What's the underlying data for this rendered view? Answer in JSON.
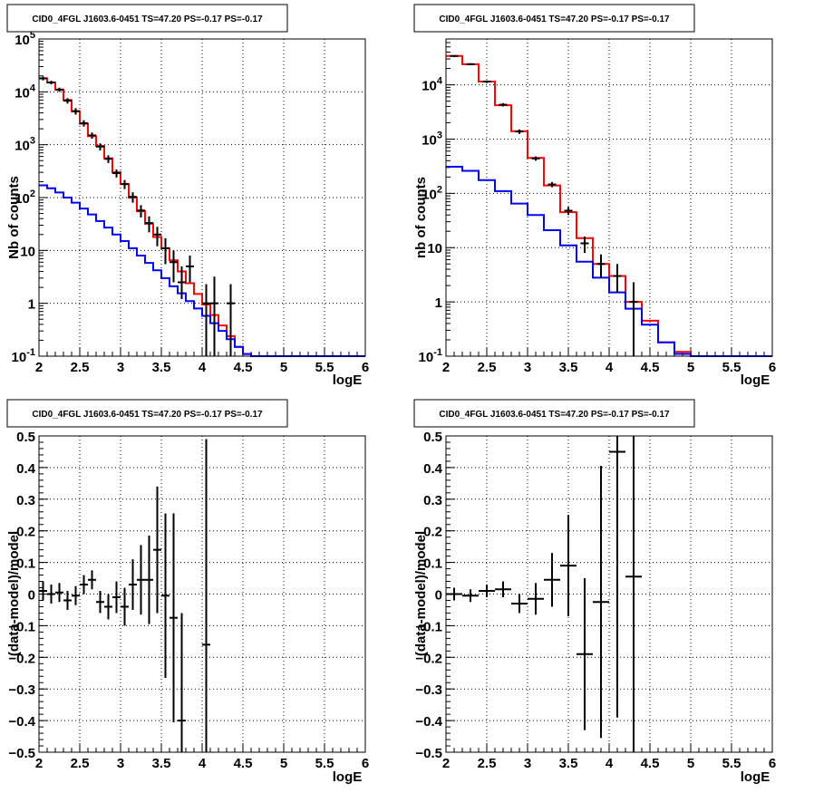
{
  "chart_data": [
    {
      "type": "line",
      "title": "CID0_4FGL J1603.6-0451 TS=47.20 PS=-0.17 PS=-0.17",
      "xlabel": "logE",
      "ylabel": "Nb of counts",
      "xlim": [
        2,
        6
      ],
      "ylim": [
        0.1,
        100000
      ],
      "yscale": "log",
      "xticks": [
        "2",
        "2.5",
        "3",
        "3.5",
        "4",
        "4.5",
        "5",
        "5.5",
        "6"
      ],
      "yticks": [
        "10^-1",
        "1",
        "10",
        "10^2",
        "10^3",
        "10^4",
        "10^5"
      ],
      "grid": true,
      "series": [
        {
          "color": "#ff0000",
          "style": "step",
          "edges": [
            2.0,
            2.1,
            2.2,
            2.3,
            2.4,
            2.5,
            2.6,
            2.7,
            2.8,
            2.9,
            3.0,
            3.1,
            3.2,
            3.3,
            3.4,
            3.5,
            3.6,
            3.7,
            3.8,
            3.9,
            4.0,
            4.1,
            4.2,
            4.3,
            4.4,
            4.5,
            4.6,
            4.7,
            4.8,
            4.9,
            5.0,
            5.1,
            5.2,
            5.3,
            5.4,
            5.5,
            5.6,
            5.7,
            5.8,
            5.9,
            6.0
          ],
          "values": [
            18000,
            15000,
            11000,
            7000,
            4300,
            2500,
            1450,
            950,
            550,
            300,
            180,
            100,
            55,
            32,
            18,
            11,
            6.5,
            4,
            2.4,
            1.5,
            0.95,
            0.6,
            0.38,
            0.24,
            0.15,
            0.11,
            0.1,
            0.1,
            0.1,
            0.1,
            0.1,
            0.1,
            0.1,
            0.1,
            0.1,
            0.1,
            0.1,
            0.1,
            0.1,
            0.1
          ]
        },
        {
          "color": "#0000ff",
          "style": "step",
          "edges": [
            2.0,
            2.1,
            2.2,
            2.3,
            2.4,
            2.5,
            2.6,
            2.7,
            2.8,
            2.9,
            3.0,
            3.1,
            3.2,
            3.3,
            3.4,
            3.5,
            3.6,
            3.7,
            3.8,
            3.9,
            4.0,
            4.1,
            4.2,
            4.3,
            4.4,
            4.5,
            4.6,
            4.7,
            4.8,
            4.9,
            5.0,
            5.1,
            5.2,
            5.3,
            5.4,
            5.5,
            5.6,
            5.7,
            5.8,
            5.9,
            6.0
          ],
          "values": [
            170,
            150,
            125,
            100,
            80,
            62,
            48,
            36,
            27,
            20,
            15,
            11,
            8,
            5.8,
            4.2,
            3,
            2.1,
            1.55,
            1.1,
            0.8,
            0.58,
            0.42,
            0.3,
            0.21,
            0.15,
            0.11,
            0.1,
            0.1,
            0.1,
            0.1,
            0.1,
            0.1,
            0.1,
            0.1,
            0.1,
            0.1,
            0.1,
            0.1,
            0.1,
            0.1
          ]
        },
        {
          "color": "#000000",
          "style": "errorbar",
          "points": [
            {
              "x": 2.05,
              "y": 18000,
              "lo": 16500,
              "hi": 19500
            },
            {
              "x": 2.15,
              "y": 15000,
              "lo": 13800,
              "hi": 16200
            },
            {
              "x": 2.25,
              "y": 11000,
              "lo": 10000,
              "hi": 12000
            },
            {
              "x": 2.35,
              "y": 6800,
              "lo": 6000,
              "hi": 7600
            },
            {
              "x": 2.45,
              "y": 4300,
              "lo": 3700,
              "hi": 4900
            },
            {
              "x": 2.55,
              "y": 2550,
              "lo": 2200,
              "hi": 2900
            },
            {
              "x": 2.65,
              "y": 1500,
              "lo": 1300,
              "hi": 1700
            },
            {
              "x": 2.75,
              "y": 920,
              "lo": 780,
              "hi": 1060
            },
            {
              "x": 2.85,
              "y": 540,
              "lo": 450,
              "hi": 630
            },
            {
              "x": 2.95,
              "y": 290,
              "lo": 240,
              "hi": 340
            },
            {
              "x": 3.05,
              "y": 180,
              "lo": 145,
              "hi": 215
            },
            {
              "x": 3.15,
              "y": 103,
              "lo": 80,
              "hi": 126
            },
            {
              "x": 3.25,
              "y": 57,
              "lo": 42,
              "hi": 72
            },
            {
              "x": 3.35,
              "y": 33,
              "lo": 22,
              "hi": 44
            },
            {
              "x": 3.45,
              "y": 20,
              "lo": 12,
              "hi": 28
            },
            {
              "x": 3.55,
              "y": 11,
              "lo": 5.5,
              "hi": 17
            },
            {
              "x": 3.65,
              "y": 6,
              "lo": 2.5,
              "hi": 10
            },
            {
              "x": 3.75,
              "y": 2.5,
              "lo": 1.2,
              "hi": 5
            },
            {
              "x": 3.85,
              "y": 5,
              "lo": 2.5,
              "hi": 8
            },
            {
              "x": 4.05,
              "y": 1,
              "lo": 0.1,
              "hi": 2.3
            },
            {
              "x": 4.15,
              "y": 1,
              "lo": 0.1,
              "hi": 3.2
            },
            {
              "x": 4.35,
              "y": 1,
              "lo": 0.1,
              "hi": 2.3
            }
          ]
        }
      ]
    },
    {
      "type": "line",
      "title": "CID0_4FGL J1603.6-0451 TS=47.20 PS=-0.17 PS=-0.17",
      "xlabel": "logE",
      "ylabel": "nb of counts",
      "xlim": [
        2,
        6
      ],
      "ylim": [
        0.1,
        70000
      ],
      "yscale": "log",
      "xticks": [
        "2",
        "2.5",
        "3",
        "3.5",
        "4",
        "4.5",
        "5",
        "5.5",
        "6"
      ],
      "yticks": [
        "10^-1",
        "1",
        "10",
        "10^2",
        "10^3",
        "10^4"
      ],
      "grid": true,
      "series": [
        {
          "color": "#ff0000",
          "style": "step",
          "edges": [
            2.0,
            2.2,
            2.4,
            2.6,
            2.8,
            3.0,
            3.2,
            3.4,
            3.6,
            3.8,
            4.0,
            4.2,
            4.4,
            4.6,
            4.8,
            5.0,
            5.2,
            5.4,
            5.6,
            5.8,
            6.0
          ],
          "values": [
            34000,
            24000,
            11500,
            4200,
            1400,
            450,
            140,
            45,
            15,
            5,
            3,
            1,
            0.45,
            0.18,
            0.12,
            0.1,
            0.1,
            0.1,
            0.1,
            0.1
          ]
        },
        {
          "color": "#0000ff",
          "style": "step",
          "edges": [
            2.0,
            2.2,
            2.4,
            2.6,
            2.8,
            3.0,
            3.2,
            3.4,
            3.6,
            3.8,
            4.0,
            4.2,
            4.4,
            4.6,
            4.8,
            5.0,
            5.2,
            5.4,
            5.6,
            5.8,
            6.0
          ],
          "values": [
            310,
            260,
            175,
            110,
            65,
            40,
            21,
            11,
            5.5,
            2.8,
            1.5,
            0.75,
            0.38,
            0.18,
            0.11,
            0.1,
            0.1,
            0.1,
            0.1,
            0.1
          ]
        },
        {
          "color": "#000000",
          "style": "errorbar",
          "points": [
            {
              "x": 2.1,
              "y": 34000,
              "lo": 33000,
              "hi": 35000
            },
            {
              "x": 2.3,
              "y": 24000,
              "lo": 23000,
              "hi": 25000
            },
            {
              "x": 2.5,
              "y": 11500,
              "lo": 11000,
              "hi": 12000
            },
            {
              "x": 2.7,
              "y": 4300,
              "lo": 4000,
              "hi": 4600
            },
            {
              "x": 2.9,
              "y": 1380,
              "lo": 1250,
              "hi": 1500
            },
            {
              "x": 3.1,
              "y": 440,
              "lo": 400,
              "hi": 480
            },
            {
              "x": 3.3,
              "y": 146,
              "lo": 130,
              "hi": 162
            },
            {
              "x": 3.5,
              "y": 48,
              "lo": 40,
              "hi": 56
            },
            {
              "x": 3.7,
              "y": 12,
              "lo": 8,
              "hi": 16
            },
            {
              "x": 3.9,
              "y": 5,
              "lo": 2.8,
              "hi": 7.5
            },
            {
              "x": 4.1,
              "y": 3,
              "lo": 1.5,
              "hi": 5
            },
            {
              "x": 4.3,
              "y": 1,
              "lo": 0.1,
              "hi": 2.3
            }
          ]
        }
      ]
    },
    {
      "type": "scatter",
      "title": "CID0_4FGL J1603.6-0451 TS=47.20 PS=-0.17 PS=-0.17",
      "xlabel": "logE",
      "ylabel": "(data-model)/model",
      "xlim": [
        2,
        6
      ],
      "ylim": [
        -0.5,
        0.5
      ],
      "xticks": [
        "2",
        "2.5",
        "3",
        "3.5",
        "4",
        "4.5",
        "5",
        "5.5",
        "6"
      ],
      "yticks": [
        "−0.5",
        "−0.4",
        "−0.3",
        "−0.2",
        "−0.1",
        "0",
        "0.1",
        "0.2",
        "0.3",
        "0.4",
        "0.5"
      ],
      "grid": true,
      "series": [
        {
          "color": "#000000",
          "style": "errorbar",
          "xhalf": 0.05,
          "points": [
            {
              "x": 2.05,
              "y": 0.01,
              "err": 0.03
            },
            {
              "x": 2.15,
              "y": 0.0,
              "err": 0.03
            },
            {
              "x": 2.25,
              "y": 0.005,
              "err": 0.03
            },
            {
              "x": 2.35,
              "y": -0.02,
              "err": 0.03
            },
            {
              "x": 2.45,
              "y": -0.005,
              "err": 0.03
            },
            {
              "x": 2.55,
              "y": 0.03,
              "err": 0.03
            },
            {
              "x": 2.65,
              "y": 0.045,
              "err": 0.03
            },
            {
              "x": 2.75,
              "y": -0.025,
              "err": 0.035
            },
            {
              "x": 2.85,
              "y": -0.04,
              "err": 0.04
            },
            {
              "x": 2.95,
              "y": -0.01,
              "err": 0.05
            },
            {
              "x": 3.05,
              "y": -0.04,
              "err": 0.06
            },
            {
              "x": 3.15,
              "y": 0.03,
              "err": 0.08
            },
            {
              "x": 3.25,
              "y": 0.045,
              "err": 0.11
            },
            {
              "x": 3.35,
              "y": 0.045,
              "err": 0.14
            },
            {
              "x": 3.45,
              "y": 0.14,
              "err": 0.2
            },
            {
              "x": 3.55,
              "y": -0.005,
              "err": 0.26
            },
            {
              "x": 3.65,
              "y": -0.075,
              "err": 0.33
            },
            {
              "x": 3.75,
              "y": -0.4,
              "err": 0.34
            },
            {
              "x": 4.05,
              "y": -0.16,
              "err": 0.65
            }
          ]
        }
      ]
    },
    {
      "type": "scatter",
      "title": "CID0_4FGL J1603.6-0451 TS=47.20 PS=-0.17 PS=-0.17",
      "xlabel": "logE",
      "ylabel": "(data-model)/model",
      "xlim": [
        2,
        6
      ],
      "ylim": [
        -0.5,
        0.5
      ],
      "xticks": [
        "2",
        "2.5",
        "3",
        "3.5",
        "4",
        "4.5",
        "5",
        "5.5",
        "6"
      ],
      "yticks": [
        "−0.5",
        "−0.4",
        "−0.3",
        "−0.2",
        "−0.1",
        "0",
        "0.1",
        "0.2",
        "0.3",
        "0.4",
        "0.5"
      ],
      "grid": true,
      "series": [
        {
          "color": "#000000",
          "style": "errorbar",
          "xhalf": 0.1,
          "points": [
            {
              "x": 2.1,
              "y": 0.0,
              "err": 0.02
            },
            {
              "x": 2.3,
              "y": -0.005,
              "err": 0.02
            },
            {
              "x": 2.5,
              "y": 0.01,
              "err": 0.02
            },
            {
              "x": 2.7,
              "y": 0.015,
              "err": 0.025
            },
            {
              "x": 2.9,
              "y": -0.03,
              "err": 0.03
            },
            {
              "x": 3.1,
              "y": -0.015,
              "err": 0.05
            },
            {
              "x": 3.3,
              "y": 0.045,
              "err": 0.085
            },
            {
              "x": 3.5,
              "y": 0.09,
              "err": 0.16
            },
            {
              "x": 3.7,
              "y": -0.19,
              "err": 0.24
            },
            {
              "x": 3.9,
              "y": -0.025,
              "err": 0.43
            },
            {
              "x": 4.1,
              "y": 0.45,
              "err": 0.84
            },
            {
              "x": 4.3,
              "y": 0.055,
              "err": 0.6
            }
          ]
        }
      ]
    }
  ]
}
